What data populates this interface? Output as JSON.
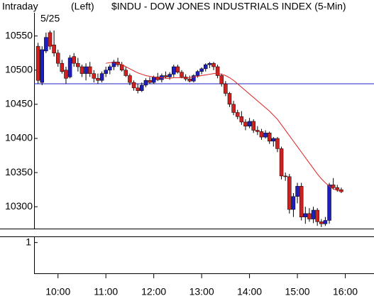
{
  "header": {
    "mode": "Intraday",
    "side": "(Left)",
    "title": "$INDU - DOW JONES INDUSTRIALS INDEX (5-Min)",
    "date_label": "5/25"
  },
  "chart_data": [
    {
      "type": "candlestick",
      "x": [
        575,
        580,
        585,
        590,
        595,
        600,
        605,
        610,
        615,
        620,
        625,
        630,
        635,
        640,
        645,
        650,
        655,
        660,
        665,
        670,
        675,
        680,
        685,
        690,
        695,
        700,
        705,
        710,
        715,
        720,
        725,
        730,
        735,
        740,
        745,
        750,
        755,
        760,
        765,
        770,
        775,
        780,
        785,
        790,
        795,
        800,
        805,
        810,
        815,
        820,
        825,
        830,
        835,
        840,
        845,
        850,
        855,
        860,
        865,
        870,
        875,
        880,
        885,
        890,
        895,
        900,
        905,
        910,
        915,
        920,
        925,
        930,
        935,
        940,
        945,
        950,
        955
      ],
      "open": [
        10535,
        10482,
        10528,
        10555,
        10537,
        10525,
        10510,
        10500,
        10490,
        10520,
        10510,
        10505,
        10495,
        10505,
        10495,
        10488,
        10485,
        10495,
        10500,
        10505,
        10512,
        10508,
        10500,
        10492,
        10482,
        10474,
        10470,
        10478,
        10485,
        10482,
        10490,
        10486,
        10492,
        10490,
        10494,
        10505,
        10497,
        10490,
        10487,
        10484,
        10492,
        10498,
        10502,
        10508,
        10510,
        10505,
        10492,
        10480,
        10466,
        10450,
        10438,
        10432,
        10424,
        10418,
        10425,
        10412,
        10410,
        10402,
        10408,
        10396,
        10400,
        10385,
        10345,
        10344,
        10296,
        10315,
        10330,
        10285,
        10290,
        10282,
        10295,
        10278,
        10275,
        10280,
        10332,
        10328,
        10325
      ],
      "high": [
        10540,
        10535,
        10555,
        10558,
        10558,
        10530,
        10515,
        10505,
        10522,
        10525,
        10518,
        10508,
        10510,
        10512,
        10500,
        10495,
        10498,
        10505,
        10508,
        10515,
        10518,
        10512,
        10505,
        10495,
        10485,
        10480,
        10482,
        10488,
        10490,
        10492,
        10496,
        10495,
        10498,
        10497,
        10508,
        10508,
        10500,
        10494,
        10492,
        10494,
        10500,
        10504,
        10510,
        10512,
        10512,
        10508,
        10495,
        10484,
        10468,
        10455,
        10442,
        10440,
        10428,
        10430,
        10428,
        10418,
        10414,
        10412,
        10410,
        10402,
        10402,
        10388,
        10350,
        10348,
        10320,
        10335,
        10335,
        10300,
        10298,
        10300,
        10298,
        10282,
        10285,
        10335,
        10342,
        10332,
        10328
      ],
      "low": [
        10480,
        10478,
        10525,
        10530,
        10520,
        10505,
        10495,
        10480,
        10488,
        10505,
        10498,
        10490,
        10485,
        10490,
        10482,
        10480,
        10482,
        10490,
        10494,
        10500,
        10505,
        10498,
        10490,
        10478,
        10470,
        10466,
        10468,
        10475,
        10480,
        10480,
        10484,
        10482,
        10488,
        10486,
        10490,
        10495,
        10488,
        10484,
        10482,
        10482,
        10489,
        10494,
        10498,
        10503,
        10500,
        10488,
        10476,
        10462,
        10446,
        10434,
        10428,
        10420,
        10412,
        10415,
        10408,
        10405,
        10398,
        10400,
        10392,
        10388,
        10380,
        10340,
        10338,
        10290,
        10285,
        10305,
        10280,
        10275,
        10278,
        10276,
        10272,
        10270,
        10272,
        10275,
        10325,
        10322,
        10320
      ],
      "close": [
        10485,
        10530,
        10548,
        10535,
        10525,
        10510,
        10498,
        10488,
        10518,
        10510,
        10505,
        10495,
        10505,
        10495,
        10488,
        10485,
        10495,
        10500,
        10505,
        10512,
        10508,
        10500,
        10492,
        10482,
        10474,
        10470,
        10478,
        10485,
        10482,
        10490,
        10486,
        10492,
        10490,
        10494,
        10505,
        10497,
        10490,
        10487,
        10484,
        10492,
        10498,
        10502,
        10508,
        10510,
        10505,
        10492,
        10480,
        10466,
        10450,
        10438,
        10432,
        10424,
        10418,
        10425,
        10412,
        10410,
        10402,
        10408,
        10396,
        10400,
        10385,
        10345,
        10344,
        10296,
        10315,
        10330,
        10285,
        10290,
        10282,
        10295,
        10278,
        10275,
        10280,
        10332,
        10328,
        10325,
        10322
      ],
      "moving_average": [
        null,
        null,
        null,
        null,
        null,
        null,
        null,
        null,
        null,
        null,
        null,
        null,
        null,
        null,
        null,
        null,
        null,
        10510,
        10511,
        10511,
        10510,
        10508,
        10505,
        10502,
        10499,
        10496,
        10494,
        10492,
        10491,
        10490,
        10489,
        10489,
        10488,
        10488,
        10489,
        10489,
        10489,
        10489,
        10489,
        10490,
        10491,
        10492,
        10493,
        10494,
        10495,
        10495,
        10494,
        10492,
        10489,
        10485,
        10480,
        10475,
        10470,
        10465,
        10460,
        10455,
        10450,
        10445,
        10440,
        10434,
        10428,
        10420,
        10412,
        10404,
        10396,
        10388,
        10380,
        10372,
        10364,
        10356,
        10348,
        10341,
        10335,
        10330,
        10326,
        10324,
        10322
      ],
      "up_color": "#1f1fbf",
      "down_color": "#d02020",
      "ma_color": "#e02020",
      "reference_line": 10480,
      "reference_color": "#2020c0",
      "xlim": [
        570,
        996
      ],
      "ylim": [
        10268,
        10584
      ],
      "yticks": [
        10300,
        10350,
        10400,
        10450,
        10500,
        10550
      ],
      "xticks": [
        {
          "value": 600,
          "label": "10:00"
        },
        {
          "value": 660,
          "label": "11:00"
        },
        {
          "value": 720,
          "label": "12:00"
        },
        {
          "value": 780,
          "label": "13:00"
        },
        {
          "value": 840,
          "label": "14:00"
        },
        {
          "value": 900,
          "label": "15:00"
        },
        {
          "value": 960,
          "label": "16:00"
        }
      ]
    },
    {
      "type": "indicator",
      "ylim": [
        0,
        1.2
      ],
      "yticks": [
        1
      ]
    }
  ]
}
